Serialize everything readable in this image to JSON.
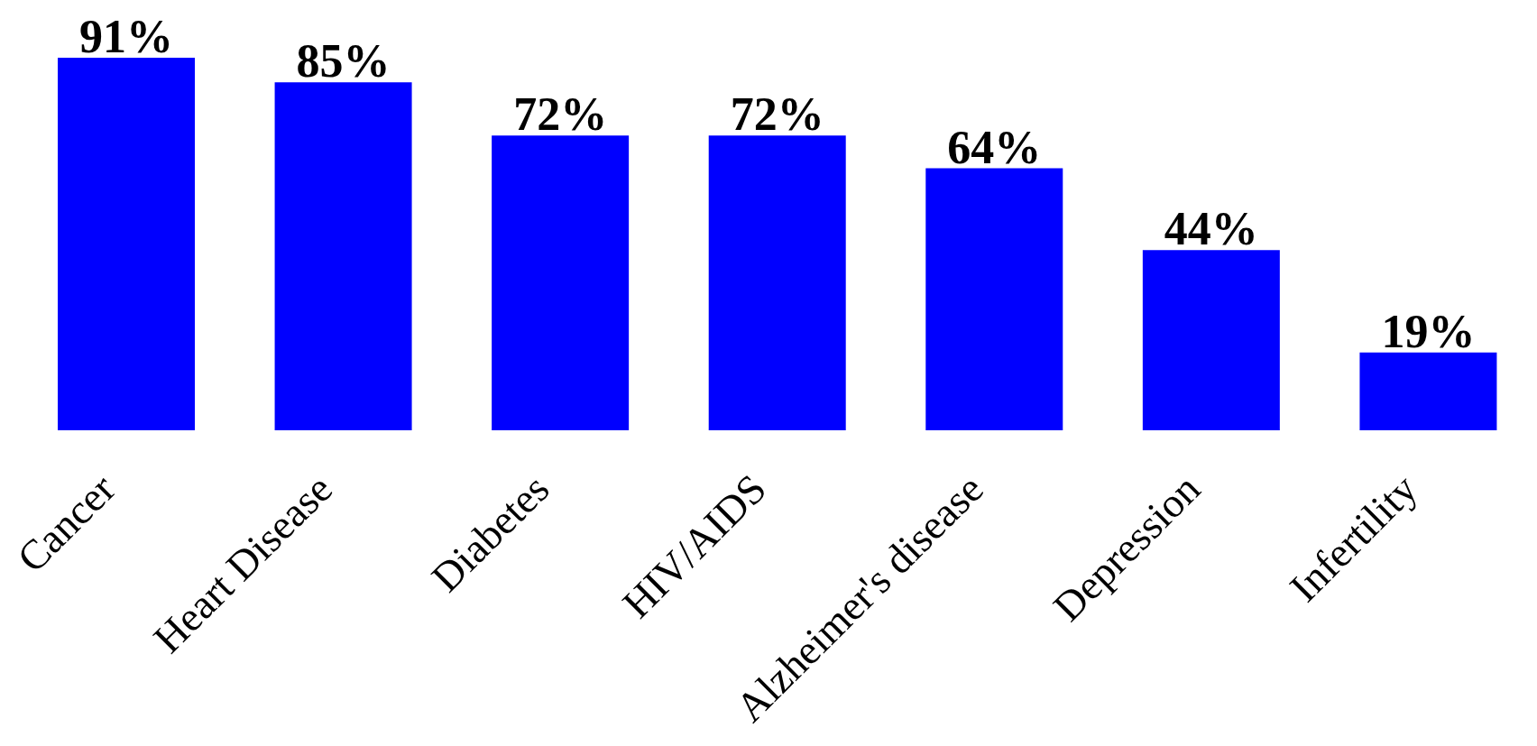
{
  "chart_data": {
    "type": "bar",
    "categories": [
      "Cancer",
      "Heart Disease",
      "Diabetes",
      "HIV/AIDS",
      "Alzheimer's disease",
      "Depression",
      "Infertility"
    ],
    "values": [
      91,
      85,
      72,
      72,
      64,
      44,
      19
    ],
    "value_labels": [
      "91%",
      "85%",
      "72%",
      "72%",
      "64%",
      "44%",
      "19%"
    ],
    "color": "#0000ff"
  }
}
